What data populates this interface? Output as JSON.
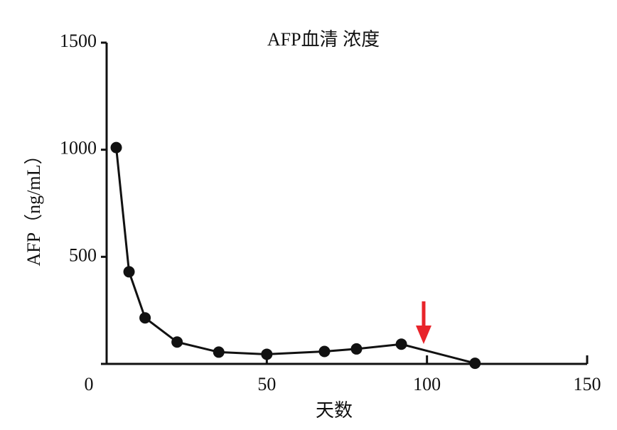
{
  "chart_data": {
    "type": "line",
    "title": "AFP血清 浓度",
    "x_label": "天数",
    "y_label": "AFP（ng/mL）",
    "x": [
      3,
      7,
      12,
      22,
      35,
      50,
      68,
      78,
      92,
      115
    ],
    "series": [
      {
        "color": "#111111",
        "values": [
          1010,
          430,
          215,
          102,
          55,
          45,
          58,
          70,
          92,
          3
        ]
      }
    ],
    "xlim": [
      0,
      150
    ],
    "xticks": [
      0,
      50,
      100,
      150
    ],
    "ylim": [
      0,
      1500
    ],
    "yticks": [
      0,
      500,
      1000,
      1500
    ],
    "grid": false
  }
}
